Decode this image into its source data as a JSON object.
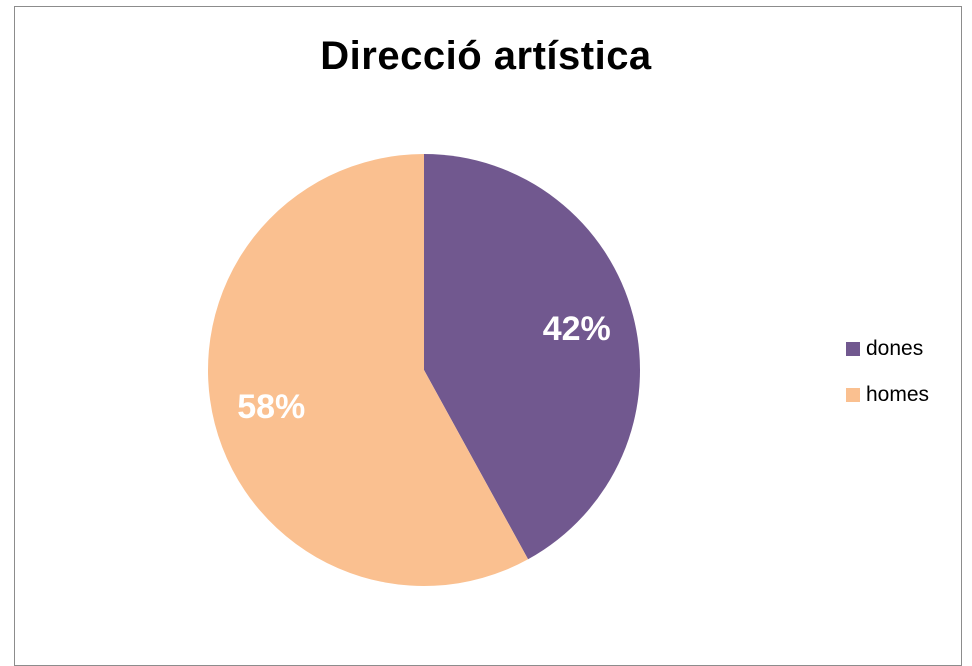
{
  "chart_data": {
    "type": "pie",
    "title": "Direcció artística",
    "categories": [
      "dones",
      "homes"
    ],
    "values": [
      42,
      58
    ],
    "value_labels": [
      "42%",
      "58%"
    ],
    "colors": [
      "#71588f",
      "#fac090"
    ],
    "legend_position": "right",
    "start_angle": "top",
    "direction": "clockwise"
  }
}
